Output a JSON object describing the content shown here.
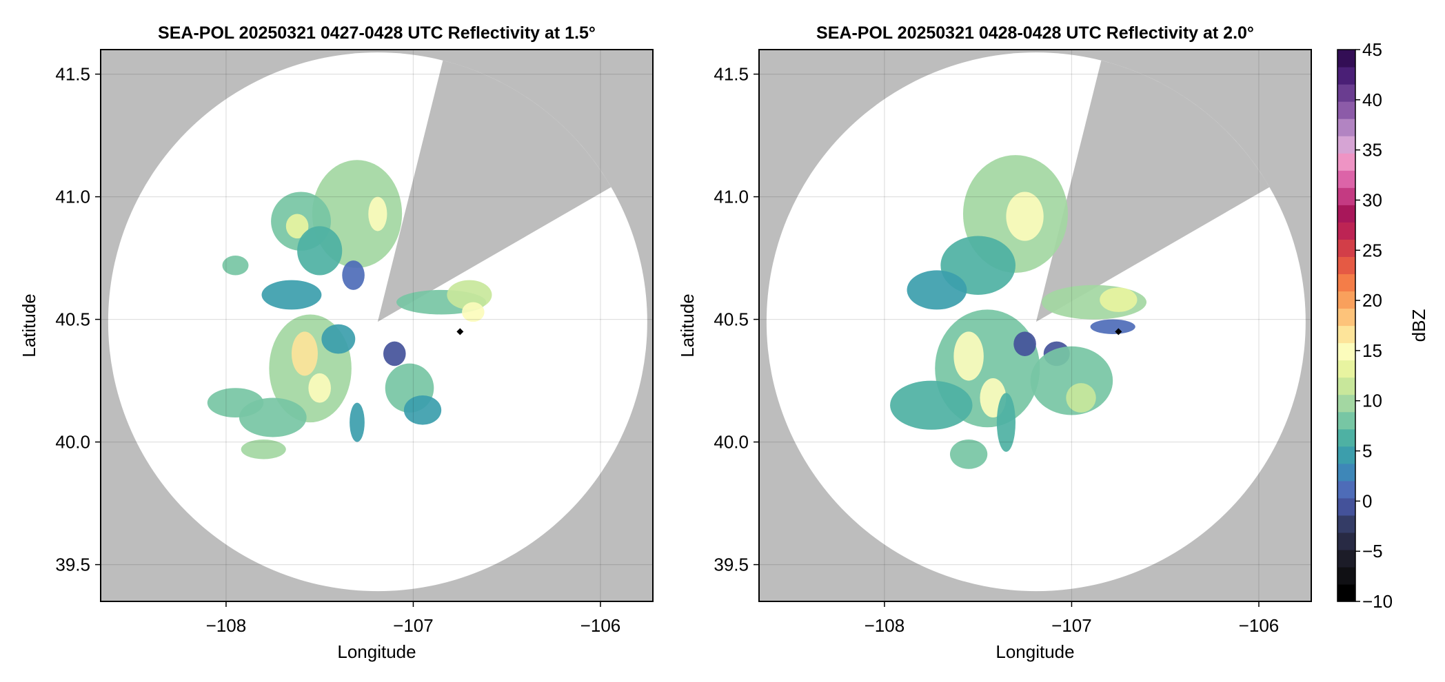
{
  "chart_data": [
    {
      "type": "heatmap",
      "title": "SEA-POL 20250321 0427-0428 UTC Reflectivity at 1.5°",
      "xlabel": "Longitude",
      "ylabel": "Latitude",
      "xlim": [
        -108.67,
        -105.72
      ],
      "ylim": [
        39.35,
        41.6
      ],
      "xticks": [
        -108,
        -107,
        -106
      ],
      "xtick_labels": [
        "−108",
        "−107",
        "−106"
      ],
      "yticks": [
        39.5,
        40.0,
        40.5,
        41.0,
        41.5
      ],
      "ytick_labels": [
        "39.5",
        "40.0",
        "40.5",
        "41.0",
        "41.5"
      ],
      "grid": true,
      "radar_center": [
        -107.19,
        40.49
      ],
      "marker": [
        -106.75,
        40.45
      ],
      "colors": {
        "blocked_area": "#bdbdbd",
        "coverage_area": "#ffffff",
        "marker": "#000000",
        "gridline": "#c8c8c8"
      },
      "blocked_sectors": [
        [
          14,
          60
        ]
      ],
      "echoes": [
        {
          "lon": -107.3,
          "lat": 40.93,
          "rx": 0.24,
          "ry": 0.22,
          "dbz": 19
        },
        {
          "lon": -107.19,
          "lat": 40.93,
          "rx": 0.05,
          "ry": 0.07,
          "dbz": 27
        },
        {
          "lon": -107.6,
          "lat": 40.9,
          "rx": 0.16,
          "ry": 0.12,
          "dbz": 16
        },
        {
          "lon": -107.62,
          "lat": 40.88,
          "rx": 0.06,
          "ry": 0.05,
          "dbz": 24
        },
        {
          "lon": -107.5,
          "lat": 40.78,
          "rx": 0.12,
          "ry": 0.1,
          "dbz": 14
        },
        {
          "lon": -107.65,
          "lat": 40.6,
          "rx": 0.16,
          "ry": 0.06,
          "dbz": 12
        },
        {
          "lon": -107.95,
          "lat": 40.72,
          "rx": 0.07,
          "ry": 0.04,
          "dbz": 15
        },
        {
          "lon": -107.32,
          "lat": 40.68,
          "rx": 0.06,
          "ry": 0.06,
          "dbz": 5
        },
        {
          "lon": -107.55,
          "lat": 40.3,
          "rx": 0.22,
          "ry": 0.22,
          "dbz": 18
        },
        {
          "lon": -107.58,
          "lat": 40.36,
          "rx": 0.07,
          "ry": 0.09,
          "dbz": 28
        },
        {
          "lon": -107.5,
          "lat": 40.22,
          "rx": 0.06,
          "ry": 0.06,
          "dbz": 25
        },
        {
          "lon": -107.4,
          "lat": 40.42,
          "rx": 0.09,
          "ry": 0.06,
          "dbz": 12
        },
        {
          "lon": -107.75,
          "lat": 40.1,
          "rx": 0.18,
          "ry": 0.08,
          "dbz": 17
        },
        {
          "lon": -107.95,
          "lat": 40.16,
          "rx": 0.15,
          "ry": 0.06,
          "dbz": 16
        },
        {
          "lon": -107.8,
          "lat": 39.97,
          "rx": 0.12,
          "ry": 0.04,
          "dbz": 18
        },
        {
          "lon": -107.02,
          "lat": 40.22,
          "rx": 0.13,
          "ry": 0.1,
          "dbz": 17
        },
        {
          "lon": -106.95,
          "lat": 40.13,
          "rx": 0.1,
          "ry": 0.06,
          "dbz": 12
        },
        {
          "lon": -107.1,
          "lat": 40.36,
          "rx": 0.06,
          "ry": 0.05,
          "dbz": 3
        },
        {
          "lon": -106.85,
          "lat": 40.57,
          "rx": 0.24,
          "ry": 0.05,
          "dbz": 17
        },
        {
          "lon": -106.7,
          "lat": 40.6,
          "rx": 0.12,
          "ry": 0.06,
          "dbz": 21
        },
        {
          "lon": -106.68,
          "lat": 40.53,
          "rx": 0.06,
          "ry": 0.04,
          "dbz": 25
        },
        {
          "lon": -107.3,
          "lat": 40.08,
          "rx": 0.04,
          "ry": 0.08,
          "dbz": 12
        }
      ]
    },
    {
      "type": "heatmap",
      "title": "SEA-POL 20250321 0428-0428 UTC Reflectivity at 2.0°",
      "xlabel": "Longitude",
      "ylabel": "Latitude",
      "xlim": [
        -108.67,
        -105.72
      ],
      "ylim": [
        39.35,
        41.6
      ],
      "xticks": [
        -108,
        -107,
        -106
      ],
      "xtick_labels": [
        "−108",
        "−107",
        "−106"
      ],
      "yticks": [
        39.5,
        40.0,
        40.5,
        41.0,
        41.5
      ],
      "ytick_labels": [
        "39.5",
        "40.0",
        "40.5",
        "41.0",
        "41.5"
      ],
      "grid": true,
      "radar_center": [
        -107.19,
        40.49
      ],
      "marker": [
        -106.75,
        40.45
      ],
      "colors": {
        "blocked_area": "#bdbdbd",
        "coverage_area": "#ffffff",
        "marker": "#000000",
        "gridline": "#c8c8c8"
      },
      "blocked_sectors": [
        [
          14,
          60
        ]
      ],
      "echoes": [
        {
          "lon": -107.3,
          "lat": 40.93,
          "rx": 0.28,
          "ry": 0.24,
          "dbz": 19
        },
        {
          "lon": -107.25,
          "lat": 40.92,
          "rx": 0.1,
          "ry": 0.1,
          "dbz": 26
        },
        {
          "lon": -107.5,
          "lat": 40.72,
          "rx": 0.2,
          "ry": 0.12,
          "dbz": 14
        },
        {
          "lon": -107.72,
          "lat": 40.62,
          "rx": 0.16,
          "ry": 0.08,
          "dbz": 12
        },
        {
          "lon": -107.45,
          "lat": 40.3,
          "rx": 0.28,
          "ry": 0.24,
          "dbz": 17
        },
        {
          "lon": -107.55,
          "lat": 40.35,
          "rx": 0.08,
          "ry": 0.1,
          "dbz": 27
        },
        {
          "lon": -107.42,
          "lat": 40.18,
          "rx": 0.07,
          "ry": 0.08,
          "dbz": 26
        },
        {
          "lon": -107.25,
          "lat": 40.4,
          "rx": 0.06,
          "ry": 0.05,
          "dbz": 4
        },
        {
          "lon": -107.08,
          "lat": 40.36,
          "rx": 0.07,
          "ry": 0.05,
          "dbz": 4
        },
        {
          "lon": -107.0,
          "lat": 40.25,
          "rx": 0.22,
          "ry": 0.14,
          "dbz": 15
        },
        {
          "lon": -106.95,
          "lat": 40.18,
          "rx": 0.08,
          "ry": 0.06,
          "dbz": 22
        },
        {
          "lon": -107.75,
          "lat": 40.15,
          "rx": 0.22,
          "ry": 0.1,
          "dbz": 14
        },
        {
          "lon": -107.55,
          "lat": 39.95,
          "rx": 0.1,
          "ry": 0.06,
          "dbz": 16
        },
        {
          "lon": -106.88,
          "lat": 40.57,
          "rx": 0.28,
          "ry": 0.07,
          "dbz": 18
        },
        {
          "lon": -106.75,
          "lat": 40.58,
          "rx": 0.1,
          "ry": 0.05,
          "dbz": 24
        },
        {
          "lon": -106.78,
          "lat": 40.47,
          "rx": 0.12,
          "ry": 0.03,
          "dbz": 6
        },
        {
          "lon": -107.35,
          "lat": 40.08,
          "rx": 0.05,
          "ry": 0.12,
          "dbz": 14
        }
      ]
    }
  ],
  "colorbar": {
    "label": "dBZ",
    "min": -10,
    "max": 45,
    "step": 2.5,
    "ticks": [
      -10,
      -5,
      0,
      5,
      10,
      15,
      20,
      25,
      30,
      35,
      40,
      45
    ],
    "tick_labels": [
      "−10",
      "−5",
      "0",
      "5",
      "10",
      "15",
      "20",
      "25",
      "30",
      "35",
      "40",
      "45"
    ],
    "palette": [
      "#000000",
      "#101014",
      "#1c1c28",
      "#282a44",
      "#343c66",
      "#44529a",
      "#4e6cb8",
      "#3e87b8",
      "#3c9eac",
      "#4eb1a3",
      "#77c6a4",
      "#a3d7a2",
      "#c8e79b",
      "#e8f4a0",
      "#fcfcbc",
      "#fde49a",
      "#fdc37a",
      "#f9a05c",
      "#f47d48",
      "#e55a44",
      "#d23e48",
      "#bd2454",
      "#a8175a",
      "#c43a82",
      "#dc64a8",
      "#ee94c4",
      "#d6a4d4",
      "#b284c2",
      "#8c5ba8",
      "#6a3d90",
      "#4a1f76",
      "#330e55"
    ]
  }
}
